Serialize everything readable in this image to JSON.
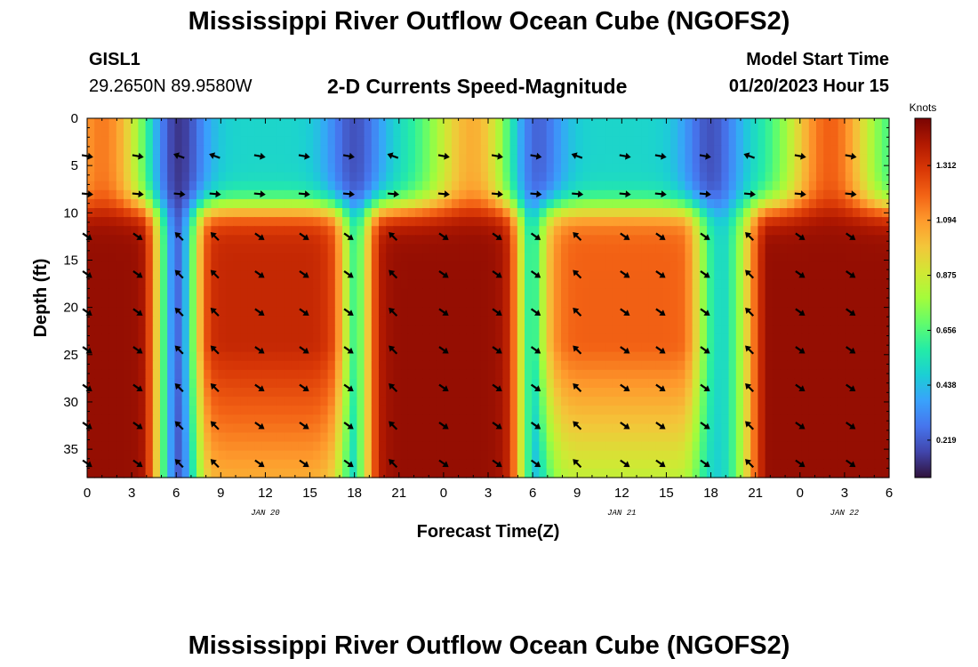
{
  "header": {
    "title": "Mississippi River Outflow Ocean Cube (NGOFS2)",
    "station_id": "GISL1",
    "station_coords": "29.2650N  89.9580W",
    "subtitle": "2-D Currents Speed-Magnitude",
    "model_start_label": "Model Start Time",
    "model_start_value": "01/20/2023 Hour 15"
  },
  "footer": {
    "title": "Mississippi River Outflow Ocean Cube (NGOFS2)"
  },
  "chart_data": {
    "type": "heatmap",
    "title": "2-D Currents Speed-Magnitude",
    "xlabel": "Forecast Time(Z)",
    "ylabel": "Depth (ft)",
    "x_ticks": [
      "0",
      "3",
      "6",
      "9",
      "12",
      "15",
      "18",
      "21",
      "0",
      "3",
      "6",
      "9",
      "12",
      "15",
      "18",
      "21",
      "0",
      "3",
      "6"
    ],
    "x_tick_hours": [
      0,
      3,
      6,
      9,
      12,
      15,
      18,
      21,
      24,
      27,
      30,
      33,
      36,
      39,
      42,
      45,
      48,
      51,
      54
    ],
    "x_range_hours": [
      0,
      54
    ],
    "date_labels": [
      {
        "text": "JAN 20",
        "hour": 12
      },
      {
        "text": "JAN 21",
        "hour": 36
      },
      {
        "text": "JAN 22",
        "hour": 51
      }
    ],
    "y_ticks": [
      0,
      5,
      10,
      15,
      20,
      25,
      30,
      35
    ],
    "y_range": [
      0,
      38
    ],
    "y_inverted": true,
    "colorbar": {
      "unit": "Knots",
      "ticks": [
        0.219,
        0.438,
        0.656,
        0.875,
        1.094,
        1.312
      ],
      "tick_labels": [
        "0.219",
        "0.438",
        "0.656",
        "0.875",
        "1.094",
        "1.312"
      ],
      "range": [
        0.07,
        1.5
      ],
      "colors": [
        "#30123b",
        "#4145ab",
        "#4675ed",
        "#39a2fc",
        "#1bcfd4",
        "#24eca6",
        "#61fc6c",
        "#a4fc3b",
        "#d1e834",
        "#f3c63a",
        "#fe9b2d",
        "#f36315",
        "#d93806",
        "#b11901",
        "#7a0403"
      ]
    },
    "arrow_hours": [
      0,
      3.4,
      6.2,
      8.6,
      11.6,
      14.6,
      17.6,
      20.6,
      24,
      27.6,
      30.2,
      33,
      36.2,
      38.6,
      41.6,
      44.6,
      48,
      51.4
    ],
    "arrow_depths": [
      4,
      8,
      12.5,
      16.5,
      20.5,
      24.5,
      28.5,
      32.5,
      36.5
    ],
    "surface_peaks": [
      {
        "hour": 1,
        "speed": 1.15
      },
      {
        "hour": 26,
        "speed": 1.05
      },
      {
        "hour": 50,
        "speed": 1.2
      }
    ],
    "surface_minima": [
      {
        "hour": 6,
        "speed": 0.1
      },
      {
        "hour": 18,
        "speed": 0.2
      },
      {
        "hour": 30,
        "speed": 0.15
      },
      {
        "hour": 42,
        "speed": 0.2
      }
    ],
    "deep_ebb_events": [
      {
        "start": 0,
        "end": 3.5,
        "peak": 1.45
      },
      {
        "start": 8.5,
        "end": 16.3,
        "peak": 1.35
      },
      {
        "start": 20,
        "end": 28,
        "peak": 1.45
      },
      {
        "start": 31.5,
        "end": 40,
        "peak": 1.2
      },
      {
        "start": 46,
        "end": 54,
        "peak": 1.45
      }
    ],
    "deep_minima": [
      {
        "hour": 6.1,
        "speed": 0.15
      },
      {
        "hour": 18,
        "speed": 0.35
      },
      {
        "hour": 30,
        "speed": 0.3
      },
      {
        "hour": 42.2,
        "speed": 0.45
      }
    ]
  }
}
